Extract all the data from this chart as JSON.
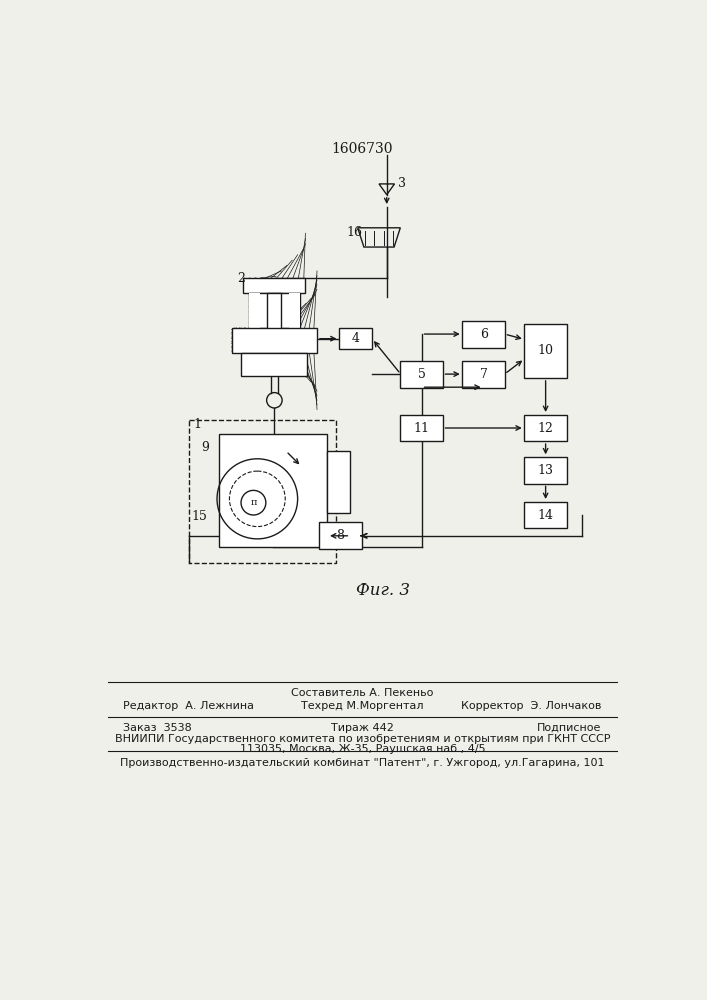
{
  "patent_number": "1606730",
  "fig_label": "Фиг. 3",
  "bg_color": "#f0f0eb",
  "line_color": "#1a1a1a",
  "footer_line1_left": "Редактор  А. Лежнина",
  "footer_line1_center": "Составитель А. Пекеньо",
  "footer_line2_center": "Техред М.Моргентал",
  "footer_line1_right": "Корректор  Э. Лончаков",
  "footer2_left": "Заказ  3538",
  "footer2_center": "Тираж 442",
  "footer2_right": "Подписное",
  "footer3": "ВНИИПИ Государственного комитета по изобретениям и открытиям при ГКНТ СССР",
  "footer4": "113035, Москва, Ж-35, Раушская наб., 4/5",
  "footer5": "Производственно-издательский комбинат \"Патент\", г. Ужгород, ул.Гагарина, 101"
}
